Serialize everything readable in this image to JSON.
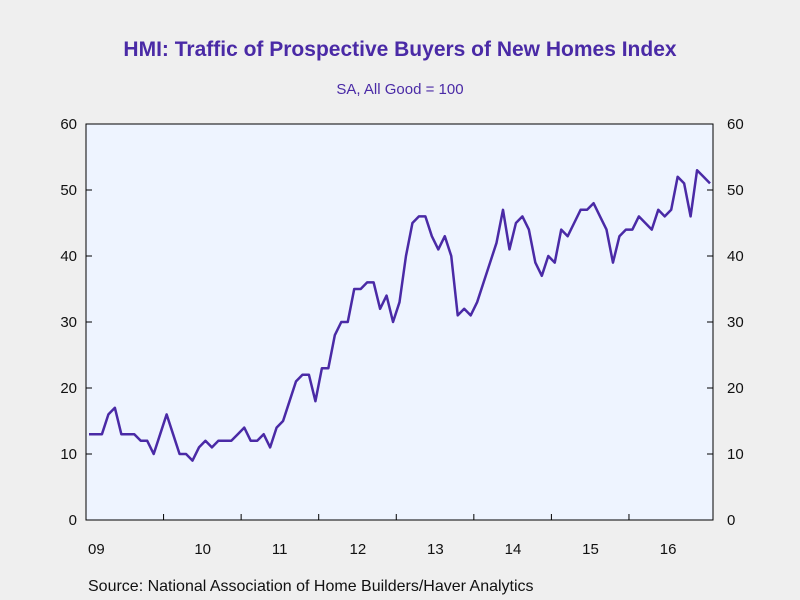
{
  "chart_data": {
    "type": "line",
    "title": "HMI: Traffic of Prospective Buyers of New Homes Index",
    "subtitle": "SA, All Good = 100",
    "source": "Source:  National Association of Home Builders/Haver Analytics",
    "ylim": [
      0,
      60
    ],
    "yticks": [
      "0",
      "10",
      "20",
      "30",
      "40",
      "50",
      "60"
    ],
    "xtick_labels": [
      "09",
      "10",
      "11",
      "12",
      "13",
      "14",
      "15",
      "16"
    ],
    "x_start": "2009-01",
    "grid": false,
    "colors": {
      "line": "#4a2aa6",
      "plot_bg": "#eef4ff",
      "page_bg": "#efefef"
    },
    "series": [
      {
        "values": [
          13,
          13,
          13,
          16,
          17,
          13,
          13,
          13,
          12,
          12,
          10,
          13,
          16,
          13,
          10,
          10,
          9,
          11,
          12,
          11,
          12,
          12,
          12,
          13,
          14,
          12,
          12,
          13,
          11,
          14,
          15,
          18,
          21,
          22,
          22,
          18,
          23,
          23,
          28,
          30,
          30,
          35,
          35,
          36,
          36,
          32,
          34,
          30,
          33,
          40,
          45,
          46,
          46,
          43,
          41,
          43,
          40,
          31,
          32,
          31,
          33,
          36,
          39,
          42,
          47,
          41,
          45,
          46,
          44,
          39,
          37,
          40,
          39,
          44,
          43,
          45,
          47,
          47,
          48,
          46,
          44,
          39,
          43,
          44,
          44,
          46,
          45,
          44,
          47,
          46,
          47,
          52,
          51,
          46,
          53,
          52,
          51
        ]
      }
    ]
  }
}
